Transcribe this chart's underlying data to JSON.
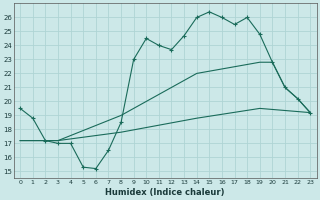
{
  "xlabel": "Humidex (Indice chaleur)",
  "bg_color": "#cce8e8",
  "grid_color": "#b0d8d8",
  "line_color": "#1a6b5a",
  "xlim": [
    -0.5,
    23.5
  ],
  "ylim": [
    14.5,
    27
  ],
  "xticks": [
    0,
    1,
    2,
    3,
    4,
    5,
    6,
    7,
    8,
    9,
    10,
    11,
    12,
    13,
    14,
    15,
    16,
    17,
    18,
    19,
    20,
    21,
    22,
    23
  ],
  "yticks": [
    15,
    16,
    17,
    18,
    19,
    20,
    21,
    22,
    23,
    24,
    25,
    26
  ],
  "series1": [
    [
      0,
      19.5
    ],
    [
      1,
      18.8
    ],
    [
      2,
      17.2
    ],
    [
      3,
      17.0
    ],
    [
      4,
      17.0
    ],
    [
      5,
      15.3
    ],
    [
      6,
      15.2
    ],
    [
      7,
      16.5
    ],
    [
      8,
      18.5
    ],
    [
      9,
      23.0
    ],
    [
      10,
      24.5
    ],
    [
      11,
      24.0
    ],
    [
      12,
      23.7
    ],
    [
      13,
      24.7
    ],
    [
      14,
      26.0
    ],
    [
      15,
      26.4
    ],
    [
      16,
      26.0
    ],
    [
      17,
      25.5
    ],
    [
      18,
      26.0
    ],
    [
      19,
      24.8
    ],
    [
      20,
      22.8
    ],
    [
      21,
      21.0
    ],
    [
      22,
      20.2
    ],
    [
      23,
      19.2
    ]
  ],
  "series2": [
    [
      0,
      17.2
    ],
    [
      3,
      17.2
    ],
    [
      8,
      19.0
    ],
    [
      14,
      22.0
    ],
    [
      19,
      22.8
    ],
    [
      20,
      22.8
    ],
    [
      21,
      21.0
    ],
    [
      22,
      20.2
    ],
    [
      23,
      19.2
    ]
  ],
  "series3": [
    [
      0,
      17.2
    ],
    [
      3,
      17.2
    ],
    [
      8,
      17.8
    ],
    [
      14,
      18.8
    ],
    [
      19,
      19.5
    ],
    [
      23,
      19.2
    ]
  ]
}
